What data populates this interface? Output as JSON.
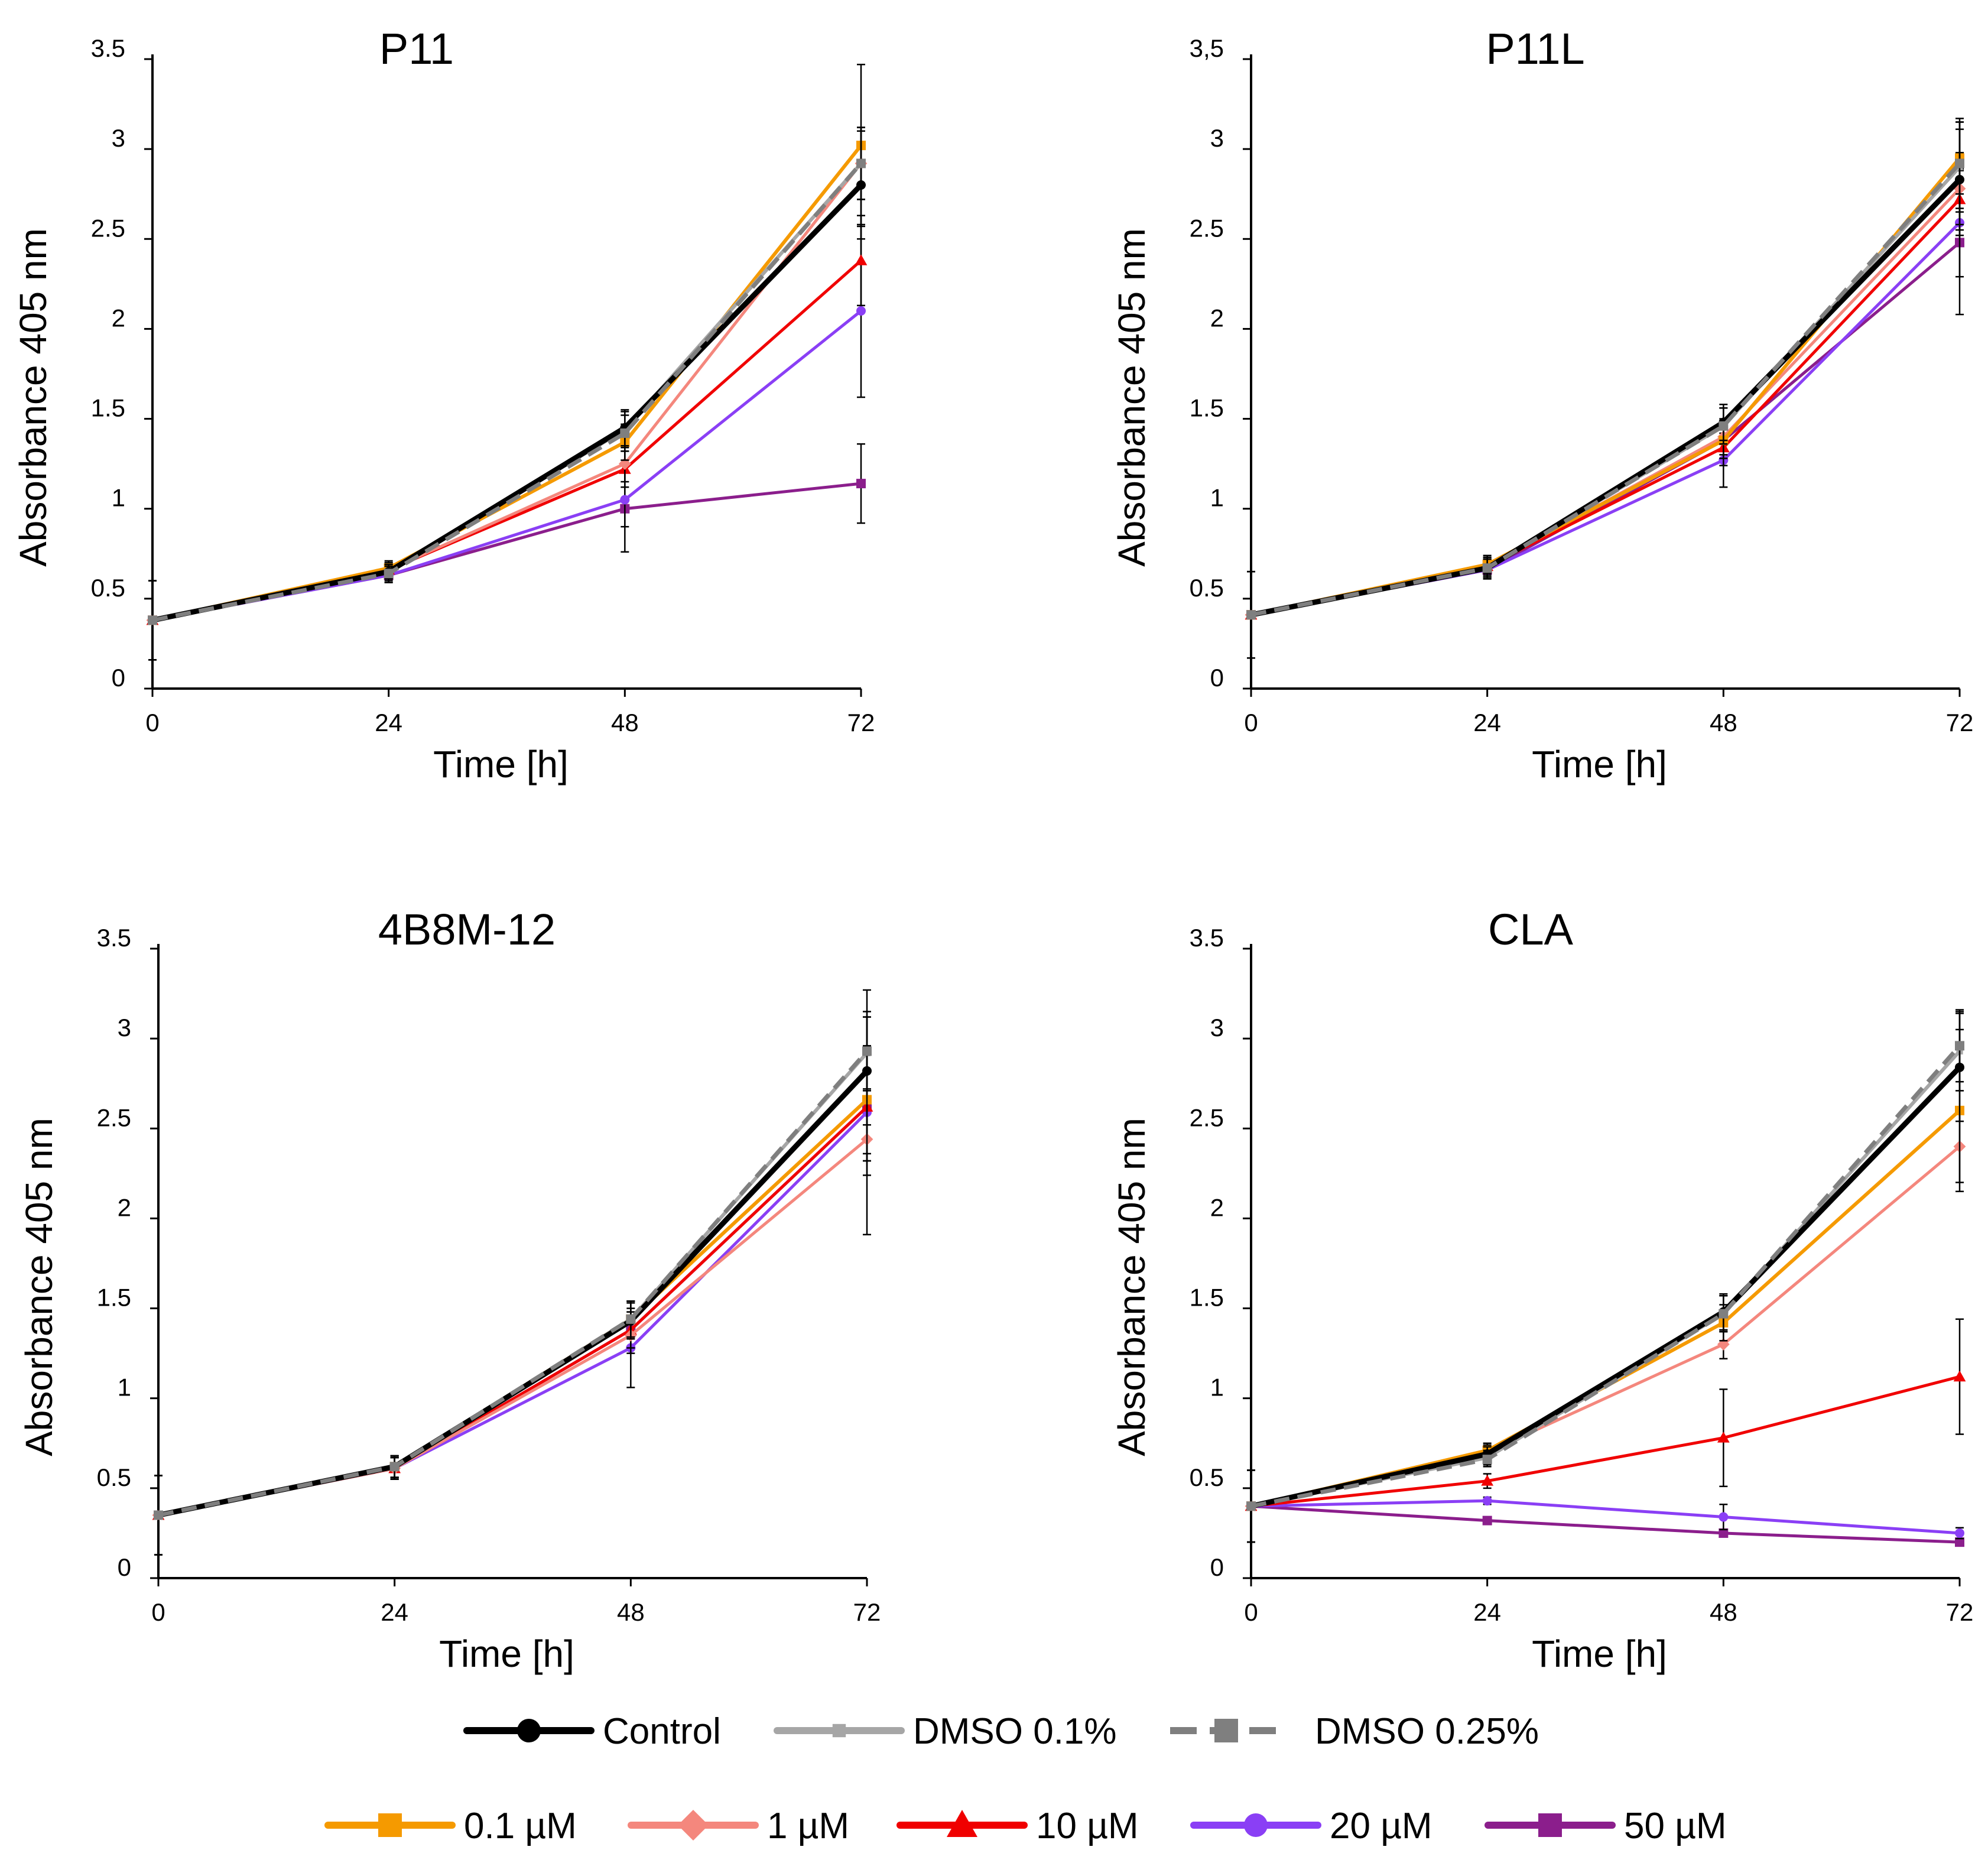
{
  "chart_data": [
    {
      "type": "line",
      "title": "P11",
      "xlabel": "Time [h]",
      "ylabel": "Absorbance 405  nm",
      "x": [
        0,
        24,
        48,
        72
      ],
      "x_ticks": [
        "0",
        "24",
        "48",
        "72"
      ],
      "y_ticks": [
        "0",
        "0.5",
        "1",
        "1.5",
        "2",
        "2.5",
        "3",
        "3.5"
      ],
      "ylim": [
        0,
        3.5
      ],
      "series": [
        {
          "name": "Control",
          "values": [
            0.38,
            0.65,
            1.45,
            2.8
          ],
          "errors": [
            0.22,
            0.04,
            0.1,
            0.3
          ]
        },
        {
          "name": "DMSO 0.1%",
          "values": [
            0.38,
            0.65,
            1.44,
            2.92
          ],
          "errors": [
            0.22,
            0.04,
            0.1,
            0.2
          ]
        },
        {
          "name": "DMSO 0.25%",
          "values": [
            0.38,
            0.64,
            1.42,
            2.92
          ],
          "errors": [
            0.22,
            0.04,
            0.1,
            0.2
          ]
        },
        {
          "name": "0.1 µM",
          "values": [
            0.38,
            0.67,
            1.37,
            3.02
          ],
          "errors": [
            0.22,
            0.04,
            0.1,
            0.45
          ]
        },
        {
          "name": "1 µM",
          "values": [
            0.38,
            0.66,
            1.25,
            2.92
          ],
          "errors": [
            0.22,
            0.04,
            0.1,
            0.2
          ]
        },
        {
          "name": "10 µM",
          "values": [
            0.38,
            0.66,
            1.22,
            2.38
          ],
          "errors": [
            0.22,
            0.04,
            0.1,
            0.25
          ]
        },
        {
          "name": "20 µM",
          "values": [
            0.38,
            0.63,
            1.05,
            2.1
          ],
          "errors": [
            0.22,
            0.04,
            0.15,
            0.48
          ]
        },
        {
          "name": "50 µM",
          "values": [
            0.38,
            0.63,
            1.0,
            1.14
          ],
          "errors": [
            0.22,
            0.04,
            0.24,
            0.22
          ]
        }
      ]
    },
    {
      "type": "line",
      "title": "P11L",
      "xlabel": "Time [h]",
      "ylabel": "Absorbance 405  nm",
      "x": [
        0,
        24,
        48,
        72
      ],
      "x_ticks": [
        "0",
        "24",
        "48",
        "72"
      ],
      "y_ticks": [
        "0",
        "0.5",
        "1",
        "1.5",
        "2",
        "2.5",
        "3",
        "3,5"
      ],
      "ylim": [
        0,
        3.5
      ],
      "series": [
        {
          "name": "Control",
          "values": [
            0.41,
            0.67,
            1.48,
            2.83
          ],
          "errors": [
            0.24,
            0.05,
            0.1,
            0.28
          ]
        },
        {
          "name": "DMSO 0.1%",
          "values": [
            0.41,
            0.67,
            1.46,
            2.9
          ],
          "errors": [
            0.24,
            0.05,
            0.1,
            0.25
          ]
        },
        {
          "name": "DMSO 0.25%",
          "values": [
            0.41,
            0.67,
            1.46,
            2.92
          ],
          "errors": [
            0.24,
            0.05,
            0.1,
            0.25
          ]
        },
        {
          "name": "0.1 µM",
          "values": [
            0.41,
            0.69,
            1.38,
            2.95
          ],
          "errors": [
            0.24,
            0.05,
            0.1,
            0.2
          ]
        },
        {
          "name": "1 µM",
          "values": [
            0.41,
            0.68,
            1.4,
            2.78
          ],
          "errors": [
            0.24,
            0.05,
            0.1,
            0.2
          ]
        },
        {
          "name": "10 µM",
          "values": [
            0.41,
            0.68,
            1.34,
            2.72
          ],
          "errors": [
            0.24,
            0.05,
            0.1,
            0.2
          ]
        },
        {
          "name": "20 µM",
          "values": [
            0.41,
            0.66,
            1.27,
            2.59
          ],
          "errors": [
            0.24,
            0.05,
            0.15,
            0.3
          ]
        },
        {
          "name": "50 µM",
          "values": [
            0.41,
            0.66,
            1.38,
            2.48
          ],
          "errors": [
            0.24,
            0.05,
            0.1,
            0.4
          ]
        }
      ]
    },
    {
      "type": "line",
      "title": "4B8M-12",
      "xlabel": "Time [h]",
      "ylabel": "Absorbance 405  nm",
      "x": [
        0,
        24,
        48,
        72
      ],
      "x_ticks": [
        "0",
        "24",
        "48",
        "72"
      ],
      "y_ticks": [
        "0",
        "0.5",
        "1",
        "1.5",
        "2",
        "2.5",
        "3",
        "3.5"
      ],
      "ylim": [
        0,
        3.5
      ],
      "series": [
        {
          "name": "Control",
          "values": [
            0.35,
            0.62,
            1.43,
            2.82
          ],
          "errors": [
            0.22,
            0.06,
            0.1,
            0.3
          ]
        },
        {
          "name": "DMSO 0.1%",
          "values": [
            0.35,
            0.62,
            1.44,
            2.92
          ],
          "errors": [
            0.22,
            0.06,
            0.1,
            0.2
          ]
        },
        {
          "name": "DMSO 0.25%",
          "values": [
            0.35,
            0.62,
            1.44,
            2.93
          ],
          "errors": [
            0.22,
            0.06,
            0.1,
            0.22
          ]
        },
        {
          "name": "0.1 µM",
          "values": [
            0.35,
            0.62,
            1.44,
            2.66
          ],
          "errors": [
            0.22,
            0.06,
            0.1,
            0.3
          ]
        },
        {
          "name": "1 µM",
          "values": [
            0.35,
            0.61,
            1.35,
            2.44
          ],
          "errors": [
            0.22,
            0.06,
            0.1,
            0.2
          ]
        },
        {
          "name": "10 µM",
          "values": [
            0.35,
            0.61,
            1.38,
            2.62
          ],
          "errors": [
            0.22,
            0.06,
            0.1,
            0.3
          ]
        },
        {
          "name": "20 µM",
          "values": [
            0.35,
            0.61,
            1.28,
            2.59
          ],
          "errors": [
            0.22,
            0.06,
            0.22,
            0.68
          ]
        },
        {
          "name": "50 µM",
          "values": [
            0.35,
            0.61,
            1.38,
            2.62
          ],
          "errors": [
            0.22,
            0.06,
            0.1,
            0.3
          ]
        }
      ]
    },
    {
      "type": "line",
      "title": "CLA",
      "xlabel": "Time [h]",
      "ylabel": "Absorbance 405  nm",
      "x": [
        0,
        24,
        48,
        72
      ],
      "x_ticks": [
        "0",
        "24",
        "48",
        "72"
      ],
      "y_ticks": [
        "0",
        "0.5",
        "1",
        "1.5",
        "2",
        "2.5",
        "3",
        "3.5"
      ],
      "ylim": [
        0,
        3.5
      ],
      "series": [
        {
          "name": "Control",
          "values": [
            0.4,
            0.69,
            1.48,
            2.84
          ],
          "errors": [
            0.2,
            0.04,
            0.1,
            0.3
          ]
        },
        {
          "name": "DMSO 0.1%",
          "values": [
            0.4,
            0.67,
            1.47,
            2.93
          ],
          "errors": [
            0.2,
            0.04,
            0.1,
            0.22
          ]
        },
        {
          "name": "DMSO 0.25%",
          "values": [
            0.4,
            0.66,
            1.47,
            2.96
          ],
          "errors": [
            0.2,
            0.04,
            0.1,
            0.2
          ]
        },
        {
          "name": "0.1 µM",
          "values": [
            0.4,
            0.71,
            1.42,
            2.6
          ],
          "errors": [
            0.2,
            0.04,
            0.1,
            0.45
          ]
        },
        {
          "name": "1 µM",
          "values": [
            0.4,
            0.7,
            1.3,
            2.4
          ],
          "errors": [
            0.2,
            0.04,
            0.08,
            0.2
          ]
        },
        {
          "name": "10 µM",
          "values": [
            0.4,
            0.54,
            0.78,
            1.12
          ],
          "errors": [
            0.2,
            0.04,
            0.27,
            0.32
          ]
        },
        {
          "name": "20 µM",
          "values": [
            0.4,
            0.43,
            0.34,
            0.25
          ],
          "errors": [
            0.2,
            0.02,
            0.07,
            0.03
          ]
        },
        {
          "name": "50 µM",
          "values": [
            0.4,
            0.32,
            0.25,
            0.2
          ],
          "errors": [
            0.2,
            0.02,
            0.02,
            0.02
          ]
        }
      ]
    }
  ],
  "legend": [
    {
      "name": "Control",
      "label": "Control",
      "color": "#000000",
      "marker": "circle",
      "dashed": false
    },
    {
      "name": "DMSO 0.1%",
      "label": "DMSO 0.1%",
      "color": "#a6a6a6",
      "marker": "square-small",
      "dashed": false
    },
    {
      "name": "DMSO 0.25%",
      "label": "DMSO 0.25%",
      "color": "#7f7f7f",
      "marker": "square",
      "dashed": true
    },
    {
      "name": "0.1 µM",
      "label": "0.1 µM",
      "color": "#f59a00",
      "marker": "square",
      "dashed": false
    },
    {
      "name": "1 µM",
      "label": "1 µM",
      "color": "#f4877d",
      "marker": "diamond",
      "dashed": false
    },
    {
      "name": "10 µM",
      "label": "10 µM",
      "color": "#f00000",
      "marker": "triangle",
      "dashed": false
    },
    {
      "name": "20 µM",
      "label": "20 µM",
      "color": "#8a3ff5",
      "marker": "circle",
      "dashed": false
    },
    {
      "name": "50 µM",
      "label": "50 µM",
      "color": "#8b1e8c",
      "marker": "square",
      "dashed": false
    }
  ]
}
